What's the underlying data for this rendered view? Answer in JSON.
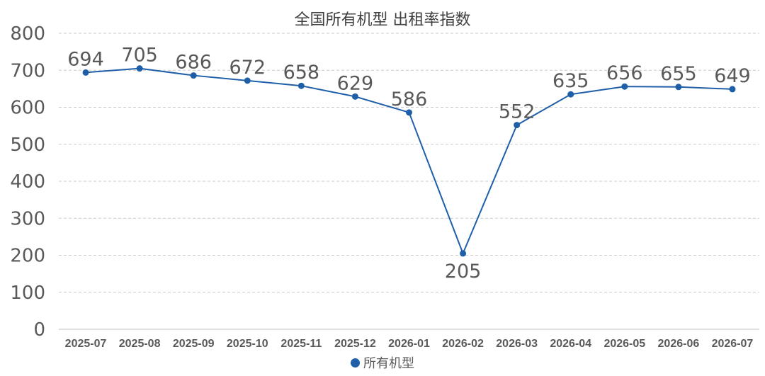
{
  "chart_data": {
    "type": "line",
    "title": "全国所有机型  出租率指数",
    "categories": [
      "2025-07",
      "2025-08",
      "2025-09",
      "2025-10",
      "2025-11",
      "2025-12",
      "2026-01",
      "2026-02",
      "2026-03",
      "2026-04",
      "2026-05",
      "2026-06",
      "2026-07"
    ],
    "series": [
      {
        "name": "所有机型",
        "values": [
          694,
          705,
          686,
          672,
          658,
          629,
          586,
          205,
          552,
          635,
          656,
          655,
          649
        ],
        "color": "#1f5fa8"
      }
    ],
    "ylim": [
      0,
      800
    ],
    "yticks": [
      0,
      100,
      200,
      300,
      400,
      500,
      600,
      700,
      800
    ],
    "grid": true,
    "legend_position": "bottom",
    "data_labels": true
  }
}
